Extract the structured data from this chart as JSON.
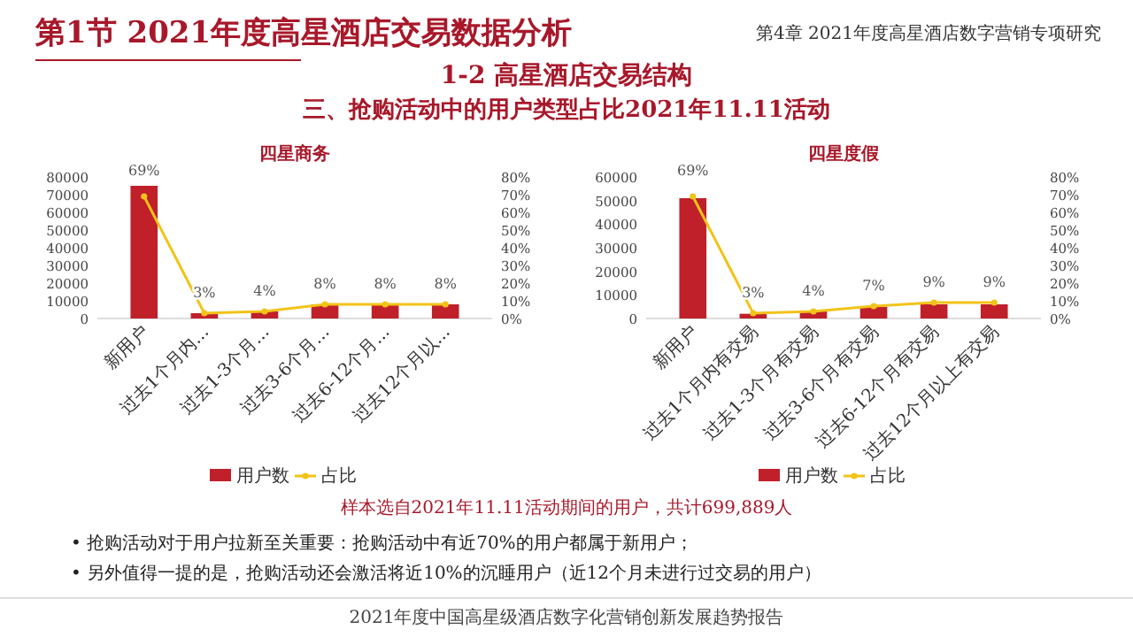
{
  "chart_data": [
    {
      "type": "bar",
      "title": "四星商务",
      "categories": [
        "新用户",
        "过去1个月内...",
        "过去1-3个月...",
        "过去3-6个月...",
        "过去6-12个月...",
        "过去12个月以..."
      ],
      "series": [
        {
          "name": "用户数",
          "color": "#c0202a",
          "values": [
            75000,
            3000,
            4000,
            8000,
            8000,
            8000
          ]
        },
        {
          "name": "占比",
          "type": "line",
          "axis": "y2",
          "color": "#f2c318",
          "values": [
            69,
            3,
            4,
            8,
            8,
            8
          ],
          "value_labels": [
            "69%",
            "3%",
            "4%",
            "8%",
            "8%",
            "8%"
          ]
        }
      ],
      "ylim": [
        0,
        80000
      ],
      "yticks": [
        0,
        10000,
        20000,
        30000,
        40000,
        50000,
        60000,
        70000,
        80000
      ],
      "y2lim": [
        0,
        80
      ],
      "y2ticks": [
        {
          "value": 0,
          "label": "0%"
        },
        {
          "value": 10,
          "label": "10%"
        },
        {
          "value": 20,
          "label": "20%"
        },
        {
          "value": 30,
          "label": "30%"
        },
        {
          "value": 40,
          "label": "40%"
        },
        {
          "value": 50,
          "label": "50%"
        },
        {
          "value": 60,
          "label": "60%"
        },
        {
          "value": 70,
          "label": "70%"
        },
        {
          "value": 80,
          "label": "80%"
        }
      ],
      "legend": "bottom",
      "marker": "circle",
      "annotations": [
        "第1节 2021年度高星酒店交易数据分析",
        "第4章 2021年度高星酒店数字营销专项研究",
        "1-2 高星酒店交易结构",
        "三、抢购活动中的用户类型占比2021年11.11活动",
        "样本选自2021年11.11活动期间的用户，共计699,889人",
        "•  抢购活动对于用户拉新至关重要：抢购活动中有近70%的用户都属于新用户；",
        "•  另外值得一提的是，抢购活动还会激活将近10%的沉睡用户（近12个月未进行过交易的用户）",
        "2021年度中国高星级酒店数字化营销创新发展趋势报告"
      ]
    },
    {
      "type": "bar",
      "title": "四星度假",
      "categories": [
        "新用户",
        "过去1个月内有交易",
        "过去1-3个月有交易",
        "过去3-6个月有交易",
        "过去6-12个月有交易",
        "过去12个月以上有交易"
      ],
      "series": [
        {
          "name": "用户数",
          "color": "#c0202a",
          "values": [
            51000,
            2000,
            3000,
            5000,
            6000,
            6000
          ]
        },
        {
          "name": "占比",
          "type": "line",
          "axis": "y2",
          "color": "#f2c318",
          "values": [
            69,
            3,
            4,
            7,
            9,
            9
          ],
          "value_labels": [
            "69%",
            "3%",
            "4%",
            "7%",
            "9%",
            "9%"
          ]
        }
      ],
      "ylim": [
        0,
        60000
      ],
      "yticks": [
        0,
        10000,
        20000,
        30000,
        40000,
        50000,
        60000
      ],
      "y2lim": [
        0,
        80
      ],
      "y2ticks": [
        {
          "value": 0,
          "label": "0%"
        },
        {
          "value": 10,
          "label": "10%"
        },
        {
          "value": 20,
          "label": "20%"
        },
        {
          "value": 30,
          "label": "30%"
        },
        {
          "value": 40,
          "label": "40%"
        },
        {
          "value": 50,
          "label": "50%"
        },
        {
          "value": 60,
          "label": "60%"
        },
        {
          "value": 70,
          "label": "70%"
        },
        {
          "value": 80,
          "label": "80%"
        }
      ],
      "legend": "bottom",
      "marker": "circle"
    }
  ]
}
